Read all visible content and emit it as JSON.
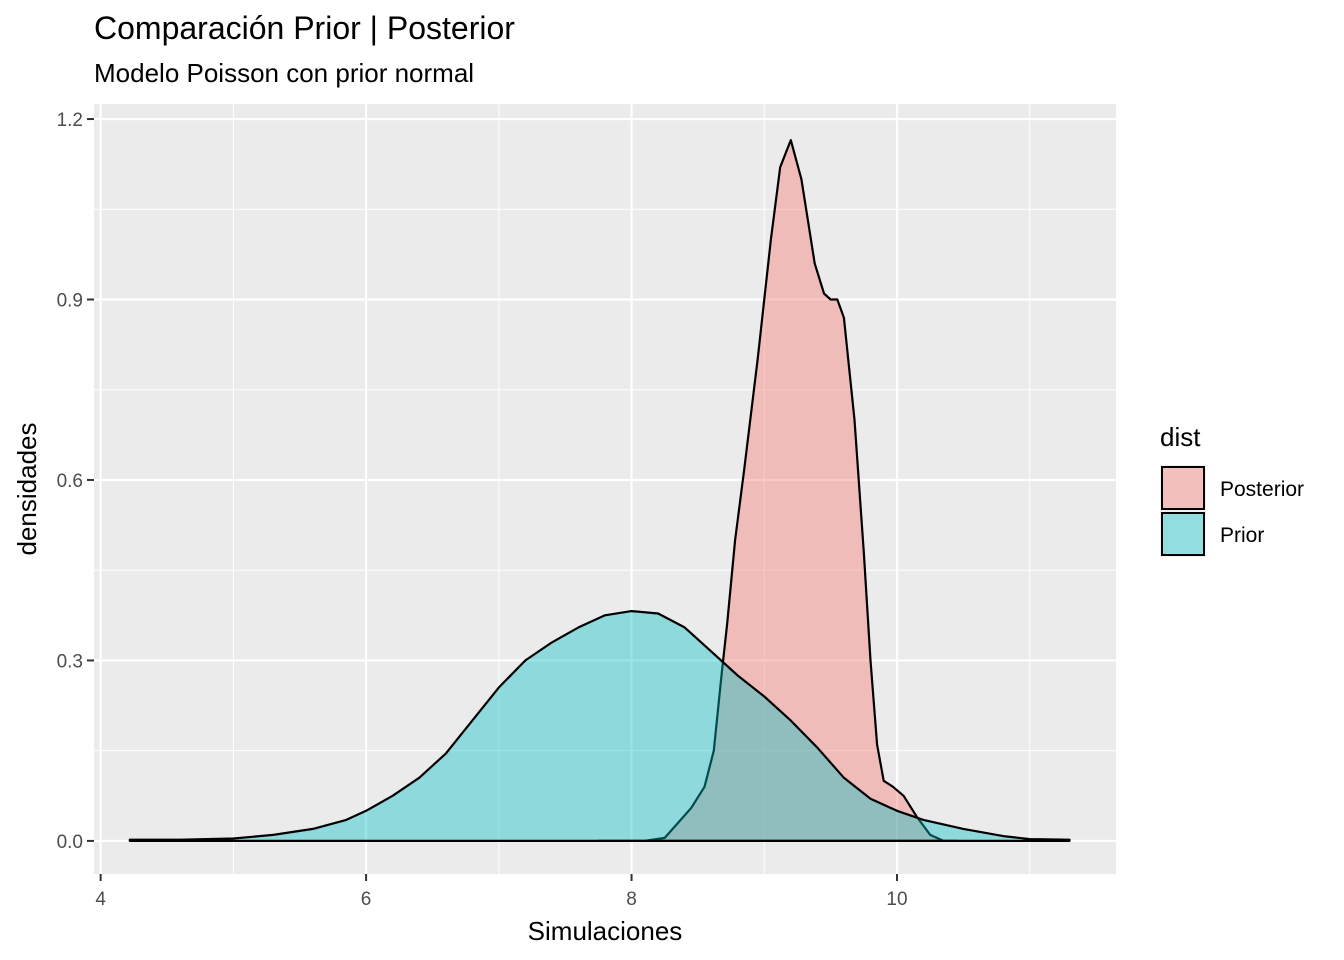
{
  "chart_data": {
    "type": "area",
    "title": "Comparación Prior | Posterior",
    "subtitle": "Modelo Poisson con prior normal",
    "xlabel": "Simulaciones",
    "ylabel": "densidades",
    "xlim": [
      3.95,
      11.65
    ],
    "ylim": [
      -0.055,
      1.225
    ],
    "x_ticks": [
      4,
      6,
      8,
      10
    ],
    "x_tick_labels": [
      "4",
      "6",
      "8",
      "10"
    ],
    "y_ticks": [
      0.0,
      0.3,
      0.6,
      0.9,
      1.2
    ],
    "y_tick_labels": [
      "0.0",
      "0.3",
      "0.6",
      "0.9",
      "1.2"
    ],
    "grid": true,
    "legend": {
      "title": "dist",
      "position": "right"
    },
    "series": [
      {
        "name": "Posterior",
        "fill": "#F8766D",
        "points": [
          [
            7.75,
            0.0
          ],
          [
            8.1,
            0.0
          ],
          [
            8.25,
            0.005
          ],
          [
            8.35,
            0.03
          ],
          [
            8.45,
            0.055
          ],
          [
            8.55,
            0.09
          ],
          [
            8.62,
            0.15
          ],
          [
            8.68,
            0.28
          ],
          [
            8.72,
            0.36
          ],
          [
            8.78,
            0.5
          ],
          [
            8.85,
            0.62
          ],
          [
            8.95,
            0.8
          ],
          [
            9.05,
            1.0
          ],
          [
            9.12,
            1.12
          ],
          [
            9.2,
            1.165
          ],
          [
            9.28,
            1.1
          ],
          [
            9.38,
            0.96
          ],
          [
            9.45,
            0.91
          ],
          [
            9.5,
            0.9
          ],
          [
            9.55,
            0.9
          ],
          [
            9.6,
            0.87
          ],
          [
            9.68,
            0.7
          ],
          [
            9.75,
            0.48
          ],
          [
            9.8,
            0.3
          ],
          [
            9.85,
            0.16
          ],
          [
            9.9,
            0.1
          ],
          [
            9.97,
            0.09
          ],
          [
            10.05,
            0.075
          ],
          [
            10.15,
            0.04
          ],
          [
            10.25,
            0.01
          ],
          [
            10.35,
            0.0
          ],
          [
            10.45,
            0.0
          ]
        ]
      },
      {
        "name": "Prior",
        "fill": "#00BFC4",
        "points": [
          [
            4.22,
            0.002
          ],
          [
            4.6,
            0.002
          ],
          [
            5.0,
            0.004
          ],
          [
            5.3,
            0.01
          ],
          [
            5.6,
            0.02
          ],
          [
            5.85,
            0.035
          ],
          [
            6.0,
            0.05
          ],
          [
            6.2,
            0.075
          ],
          [
            6.4,
            0.105
          ],
          [
            6.6,
            0.145
          ],
          [
            6.8,
            0.2
          ],
          [
            7.0,
            0.255
          ],
          [
            7.2,
            0.3
          ],
          [
            7.4,
            0.33
          ],
          [
            7.6,
            0.355
          ],
          [
            7.8,
            0.375
          ],
          [
            8.0,
            0.382
          ],
          [
            8.2,
            0.378
          ],
          [
            8.4,
            0.355
          ],
          [
            8.6,
            0.315
          ],
          [
            8.8,
            0.275
          ],
          [
            9.0,
            0.24
          ],
          [
            9.2,
            0.2
          ],
          [
            9.4,
            0.155
          ],
          [
            9.6,
            0.105
          ],
          [
            9.8,
            0.07
          ],
          [
            10.0,
            0.05
          ],
          [
            10.2,
            0.035
          ],
          [
            10.5,
            0.02
          ],
          [
            10.8,
            0.008
          ],
          [
            11.0,
            0.003
          ],
          [
            11.3,
            0.002
          ]
        ]
      }
    ]
  }
}
